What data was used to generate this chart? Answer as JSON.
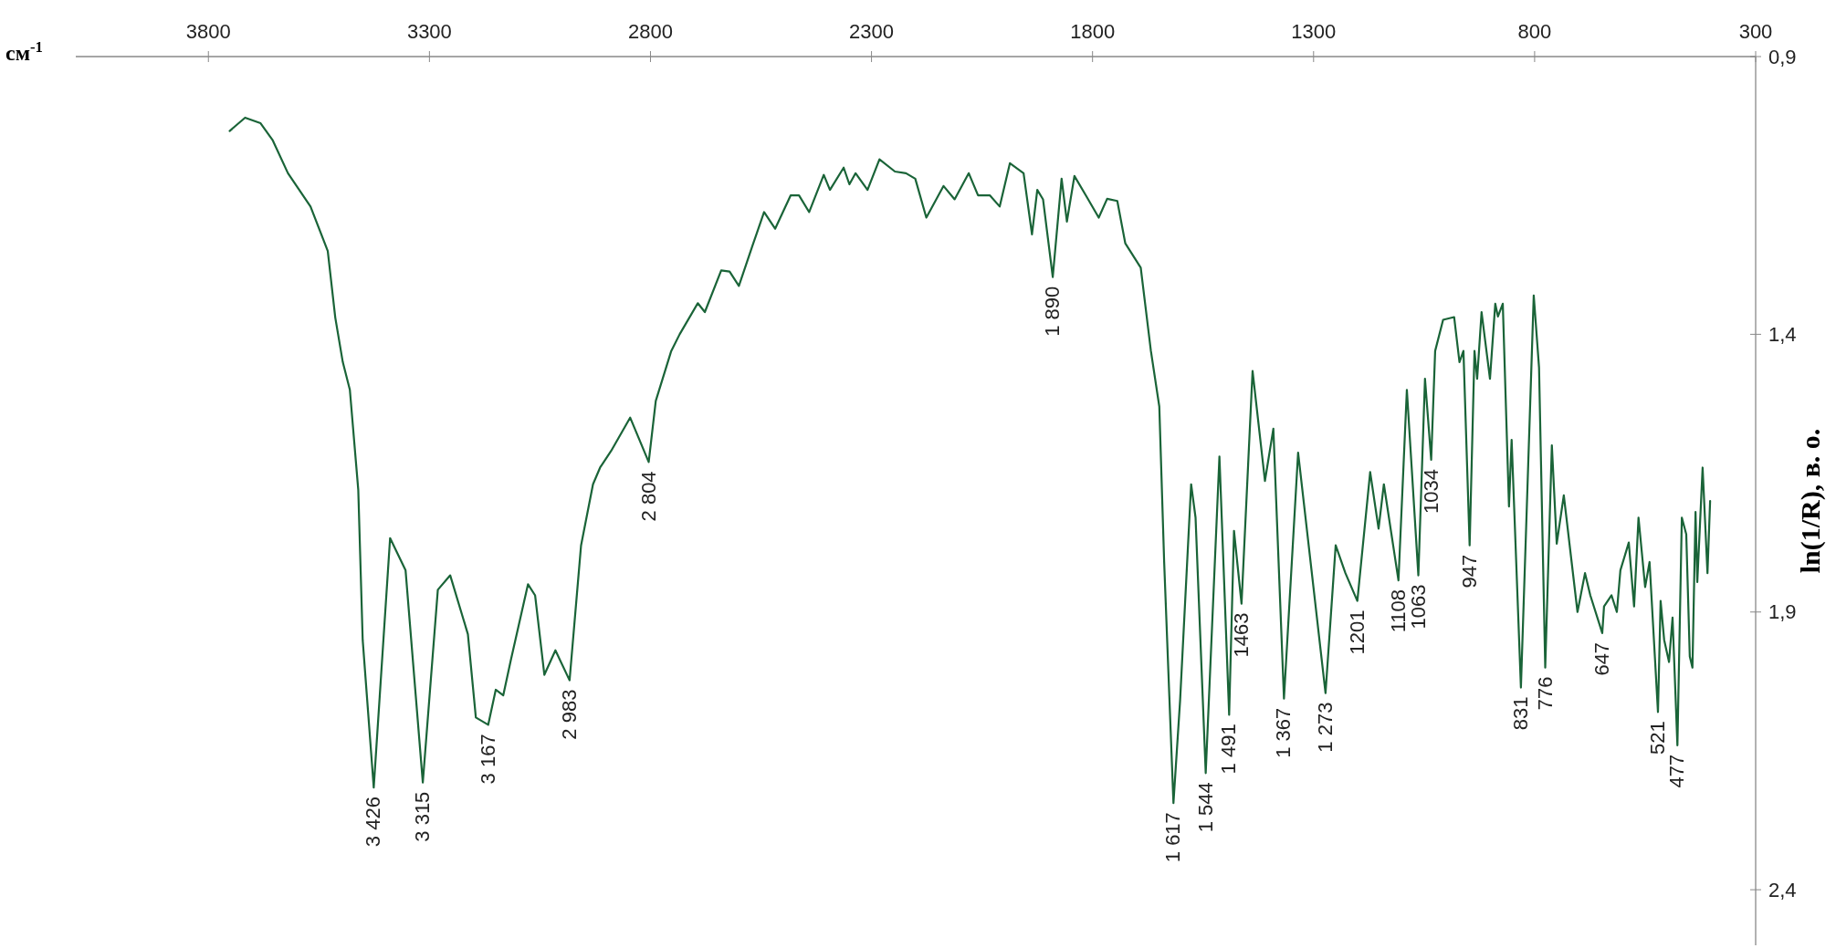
{
  "chart_data": {
    "type": "line",
    "xlabel": "см$^{-1}$",
    "ylabel": "ln(1/R), в. о.",
    "xlim": [
      4100,
      300
    ],
    "xticks": [
      3800,
      3300,
      2800,
      2300,
      1800,
      1300,
      800,
      300
    ],
    "ylim": [
      2.5,
      0.9
    ],
    "yticks": [
      {
        "value": 0.9,
        "label": "0,9"
      },
      {
        "value": 1.4,
        "label": "1,4"
      },
      {
        "value": 1.9,
        "label": "1,9"
      },
      {
        "value": 2.4,
        "label": "2,4"
      }
    ],
    "grid": false,
    "marker": "none",
    "line_style": "solid",
    "series": [
      {
        "color": "#1a6438",
        "x": [
          3752,
          3717,
          3682,
          3655,
          3620,
          3569,
          3530,
          3513,
          3496,
          3480,
          3461,
          3451,
          3426,
          3389,
          3354,
          3315,
          3281,
          3253,
          3213,
          3195,
          3167,
          3150,
          3133,
          3116,
          3077,
          3061,
          3040,
          3015,
          2983,
          2957,
          2930,
          2914,
          2889,
          2846,
          2804,
          2788,
          2753,
          2734,
          2693,
          2677,
          2640,
          2621,
          2600,
          2569,
          2543,
          2518,
          2483,
          2464,
          2441,
          2408,
          2394,
          2363,
          2350,
          2336,
          2309,
          2282,
          2247,
          2222,
          2201,
          2176,
          2137,
          2112,
          2080,
          2059,
          2032,
          2010,
          1987,
          1956,
          1937,
          1925,
          1912,
          1890,
          1870,
          1858,
          1841,
          1815,
          1786,
          1767,
          1744,
          1726,
          1691,
          1668,
          1649,
          1638,
          1617,
          1602,
          1577,
          1567,
          1544,
          1513,
          1491,
          1480,
          1463,
          1438,
          1410,
          1391,
          1367,
          1335,
          1273,
          1250,
          1228,
          1201,
          1172,
          1153,
          1141,
          1108,
          1089,
          1063,
          1048,
          1034,
          1025,
          1007,
          982,
          970,
          961,
          947,
          936,
          930,
          920,
          901,
          889,
          883,
          872,
          858,
          852,
          831,
          802,
          790,
          776,
          761,
          750,
          734,
          703,
          686,
          674,
          647,
          643,
          626,
          614,
          606,
          587,
          575,
          565,
          550,
          540,
          521,
          515,
          507,
          496,
          488,
          477,
          467,
          457,
          449,
          443,
          436,
          432,
          420,
          409,
          403
        ],
        "values": [
          1.034,
          1.01,
          1.02,
          1.05,
          1.11,
          1.17,
          1.25,
          1.37,
          1.45,
          1.5,
          1.68,
          1.95,
          2.216,
          1.767,
          1.825,
          2.207,
          1.86,
          1.834,
          1.94,
          2.09,
          2.103,
          2.04,
          2.05,
          1.987,
          1.85,
          1.87,
          2.013,
          1.969,
          2.023,
          1.78,
          1.67,
          1.64,
          1.61,
          1.55,
          1.63,
          1.52,
          1.43,
          1.4,
          1.344,
          1.36,
          1.285,
          1.287,
          1.313,
          1.24,
          1.18,
          1.21,
          1.15,
          1.15,
          1.18,
          1.113,
          1.14,
          1.1,
          1.13,
          1.11,
          1.14,
          1.085,
          1.107,
          1.11,
          1.12,
          1.19,
          1.133,
          1.157,
          1.11,
          1.15,
          1.15,
          1.17,
          1.092,
          1.11,
          1.22,
          1.14,
          1.157,
          1.297,
          1.12,
          1.197,
          1.115,
          1.15,
          1.19,
          1.156,
          1.16,
          1.236,
          1.28,
          1.43,
          1.53,
          1.81,
          2.244,
          2.06,
          1.67,
          1.73,
          2.19,
          1.62,
          2.085,
          1.754,
          1.885,
          1.466,
          1.664,
          1.57,
          2.056,
          1.613,
          2.046,
          1.78,
          1.83,
          1.88,
          1.648,
          1.75,
          1.67,
          1.843,
          1.5,
          1.834,
          1.48,
          1.626,
          1.43,
          1.374,
          1.369,
          1.45,
          1.43,
          1.78,
          1.43,
          1.48,
          1.36,
          1.48,
          1.345,
          1.368,
          1.345,
          1.71,
          1.59,
          2.036,
          1.33,
          1.46,
          2.0,
          1.6,
          1.777,
          1.69,
          1.9,
          1.83,
          1.87,
          1.938,
          1.89,
          1.87,
          1.9,
          1.825,
          1.775,
          1.89,
          1.73,
          1.855,
          1.81,
          2.08,
          1.88,
          1.95,
          1.99,
          1.91,
          2.14,
          1.73,
          1.76,
          1.98,
          2.0,
          1.72,
          1.846,
          1.64,
          1.83,
          1.7
        ]
      }
    ],
    "annotations": [
      {
        "text": "3 426",
        "x": 3426,
        "y": 2.216
      },
      {
        "text": "3 315",
        "x": 3315,
        "y": 2.207
      },
      {
        "text": "3 167",
        "x": 3167,
        "y": 2.103
      },
      {
        "text": "2 983",
        "x": 2983,
        "y": 2.023
      },
      {
        "text": "2 804",
        "x": 2804,
        "y": 1.63
      },
      {
        "text": "1 890",
        "x": 1890,
        "y": 1.297
      },
      {
        "text": "1 617",
        "x": 1617,
        "y": 2.244
      },
      {
        "text": "1 544",
        "x": 1544,
        "y": 2.19
      },
      {
        "text": "1 491",
        "x": 1491,
        "y": 2.085
      },
      {
        "text": "1463",
        "x": 1463,
        "y": 1.885
      },
      {
        "text": "1 367",
        "x": 1367,
        "y": 2.056
      },
      {
        "text": "1 273",
        "x": 1273,
        "y": 2.046
      },
      {
        "text": "1201",
        "x": 1201,
        "y": 1.88
      },
      {
        "text": "1108",
        "x": 1108,
        "y": 1.843
      },
      {
        "text": "1063",
        "x": 1063,
        "y": 1.834
      },
      {
        "text": "1034",
        "x": 1034,
        "y": 1.626
      },
      {
        "text": "947",
        "x": 947,
        "y": 1.78
      },
      {
        "text": "831",
        "x": 831,
        "y": 2.036
      },
      {
        "text": "776",
        "x": 776,
        "y": 2.0
      },
      {
        "text": "647",
        "x": 647,
        "y": 1.938
      },
      {
        "text": "521",
        "x": 521,
        "y": 2.08
      },
      {
        "text": "477",
        "x": 477,
        "y": 2.14
      }
    ]
  }
}
